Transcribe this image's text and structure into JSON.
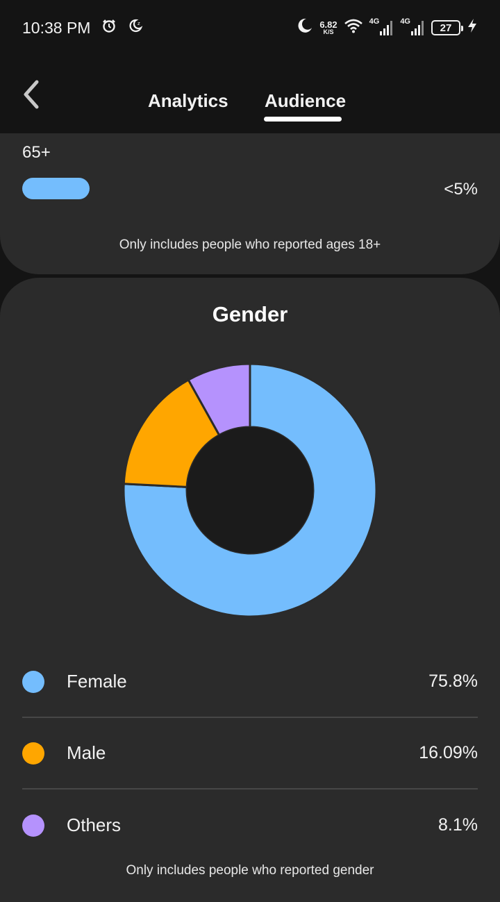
{
  "status_bar": {
    "time": "10:38 PM",
    "net_speed_value": "6.82",
    "net_speed_unit": "K/S",
    "network_1": "4G",
    "network_2": "4G",
    "battery": "27",
    "icons": [
      "alarm-icon",
      "bedtime-icon",
      "moon-icon",
      "wifi-icon",
      "signal-icon",
      "signal-icon",
      "battery-icon",
      "charging-icon"
    ]
  },
  "header": {
    "tabs": [
      {
        "label": "Analytics",
        "active": false
      },
      {
        "label": "Audience",
        "active": true
      }
    ]
  },
  "age_card": {
    "label": "65+",
    "value": "<5%",
    "bar_color": "#74bdfd",
    "footnote": "Only includes people who reported ages 18+"
  },
  "gender_card": {
    "title": "Gender",
    "legend": [
      {
        "label": "Female",
        "value": "75.8%",
        "color": "#74bdfd"
      },
      {
        "label": "Male",
        "value": "16.09%",
        "color": "#ffa600"
      },
      {
        "label": "Others",
        "value": "8.1%",
        "color": "#b592fd"
      }
    ],
    "footnote": "Only includes people who reported gender"
  },
  "chart_data": {
    "type": "pie",
    "categories": [
      "Female",
      "Male",
      "Others"
    ],
    "values": [
      75.8,
      16.09,
      8.1
    ],
    "colors": [
      "#74bdfd",
      "#ffa600",
      "#b592fd"
    ],
    "title": "Gender"
  }
}
